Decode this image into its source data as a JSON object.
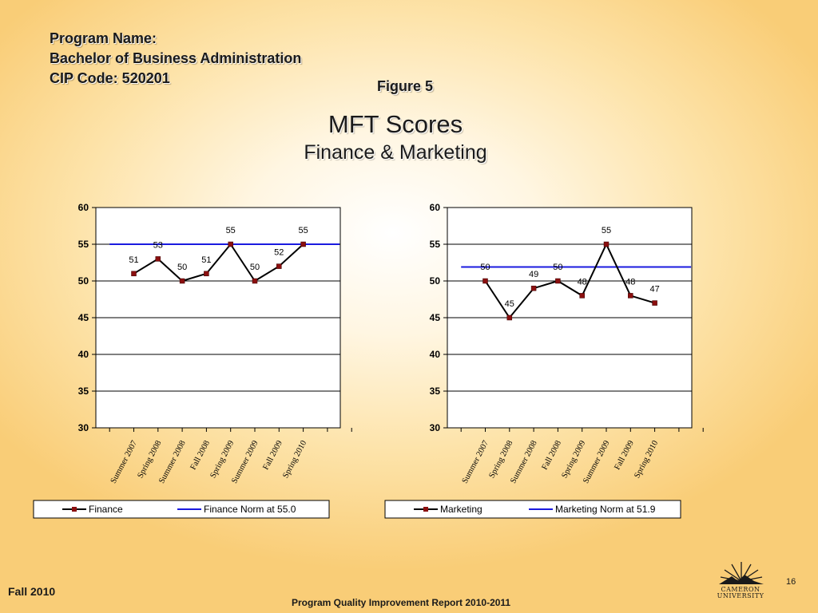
{
  "header": {
    "line1": "Program Name:",
    "line2": "Bachelor of Business Administration",
    "line3": "CIP Code: 520201"
  },
  "figure_label": "Figure 5",
  "title": "MFT Scores",
  "subtitle": "Finance & Marketing",
  "footer": {
    "left": "Fall 2010",
    "center": "Program Quality Improvement Report 2010-2011",
    "page": "16",
    "logo_line1": "CAMERON",
    "logo_line2": "UNIVERSITY"
  },
  "colors": {
    "series": "#000000",
    "marker": "#8b0f0f",
    "norm": "#1a1adf",
    "plot_bg": "#ffffff"
  },
  "chart_data": [
    {
      "type": "line",
      "categories": [
        "Summer 2007",
        "Spring 2008",
        "Summer 2008",
        "Fall 2008",
        "Spring 2009",
        "Summer 2009",
        "Fall 2009",
        "Spring 2010"
      ],
      "series": [
        {
          "name": "Finance",
          "values": [
            51,
            53,
            50,
            51,
            55,
            50,
            52,
            55
          ],
          "labels": [
            "51",
            "53",
            "50",
            "51",
            "55",
            "50",
            "52",
            "55"
          ]
        },
        {
          "name": "Finance Norm at 55.0",
          "values": [
            55,
            55,
            55,
            55,
            55,
            55,
            55,
            55
          ]
        }
      ],
      "yticks": [
        "60",
        "55",
        "50",
        "45",
        "40",
        "35",
        "30"
      ],
      "ylim": [
        30,
        60
      ],
      "grid": true,
      "legend": "bottom"
    },
    {
      "type": "line",
      "categories": [
        "Summer 2007",
        "Spring 2008",
        "Summer 2008",
        "Fall 2008",
        "Spring 2009",
        "Summer 2009",
        "Fall 2009",
        "Spring 2010"
      ],
      "series": [
        {
          "name": "Marketing",
          "values": [
            50,
            45,
            49,
            50,
            48,
            55,
            48,
            47
          ],
          "labels": [
            "50",
            "45",
            "49",
            "50",
            "48",
            "55",
            "48",
            "47"
          ]
        },
        {
          "name": "Marketing Norm at 51.9",
          "values": [
            51.9,
            51.9,
            51.9,
            51.9,
            51.9,
            51.9,
            51.9,
            51.9
          ]
        }
      ],
      "yticks": [
        "60",
        "55",
        "50",
        "45",
        "40",
        "35",
        "30"
      ],
      "ylim": [
        30,
        60
      ],
      "grid": true,
      "legend": "bottom"
    }
  ]
}
